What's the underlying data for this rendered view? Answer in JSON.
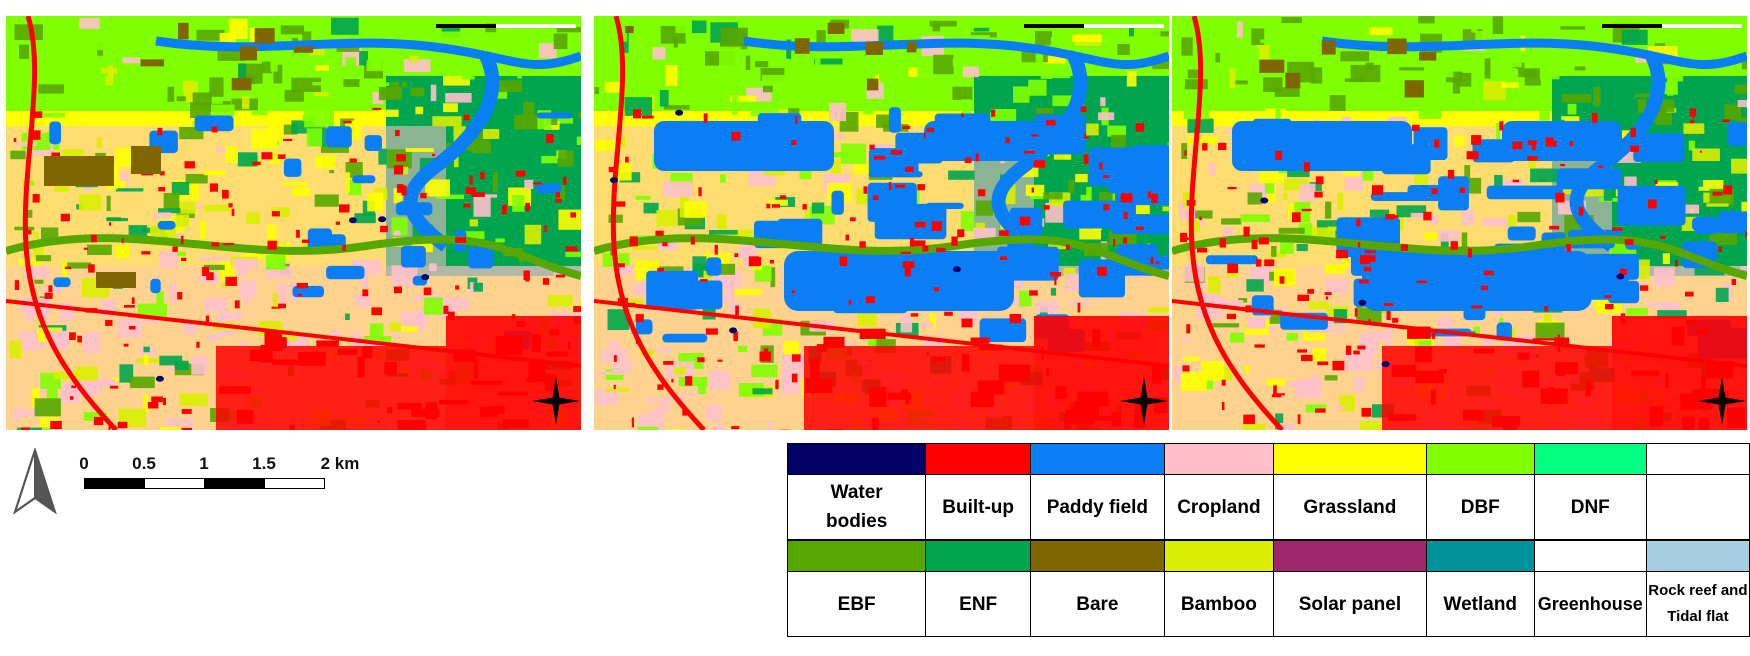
{
  "maps": [
    {
      "id": "map-1"
    },
    {
      "id": "map-2"
    },
    {
      "id": "map-3"
    }
  ],
  "scale": {
    "ticks": [
      "0",
      "0.5",
      "1",
      "1.5",
      "2 km"
    ]
  },
  "legend": {
    "row1": [
      {
        "label": "Water bodies",
        "color": "#000066"
      },
      {
        "label": "Built-up",
        "color": "#ff0000"
      },
      {
        "label": "Paddy field",
        "color": "#0a7ff5"
      },
      {
        "label": "Cropland",
        "color": "#ffc0cb"
      },
      {
        "label": "Grassland",
        "color": "#ffff00"
      },
      {
        "label": "DBF",
        "color": "#80ff00"
      },
      {
        "label": "DNF",
        "color": "#00ff80"
      },
      {
        "label": "",
        "color": "#ffffff"
      }
    ],
    "row2": [
      {
        "label": "EBF",
        "color": "#56a700"
      },
      {
        "label": "ENF",
        "color": "#00a550"
      },
      {
        "label": "Bare",
        "color": "#806600"
      },
      {
        "label": "Bamboo",
        "color": "#d9ee00"
      },
      {
        "label": "Solar panel",
        "color": "#a0266e"
      },
      {
        "label": "Wetland",
        "color": "#00929a"
      },
      {
        "label": "Greenhouse",
        "color": "#ffffff"
      },
      {
        "label": "Rock reef and Tidal flat",
        "color": "#a6cee3"
      }
    ]
  }
}
